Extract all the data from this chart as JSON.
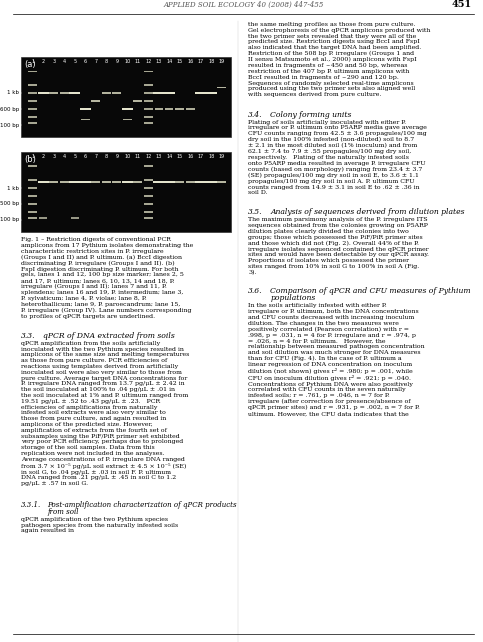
{
  "page_header": "APPLIED SOIL ECOLOGY 40 (2008) 447-455",
  "page_number": "451",
  "fig_label_a": "(a)",
  "fig_label_b": "(b)",
  "gel_a_lanes": "1  2  3  4  5  6  7  8  9  10  11  12  13  14  15  16  17  18  19",
  "gel_b_lanes": "1  2  3  4  5  6  7  8  9  10  11  12  13  14  15  16  17  18  19",
  "gel_a_markers": [
    "1 kb",
    "600 bp",
    "100 bp"
  ],
  "gel_b_markers": [
    "1 kb",
    "500 bp",
    "100 bp"
  ],
  "fig_caption": "Fig. 1 – Restriction digests of conventional PCR amplicons from 17 Pythium isolates demonstrating the characteristic restriction sites in P. irregulare (Groups I and II) and P. ultimum. (a) BccI digestion discriminating P. irregulare (Groups I and II). (b) FspI digestion discriminating P. ultimum. For both gels, lanes 1 and 12, 100 bp size marker; lanes 2, 5 and 17, P. ultimum; lanes 6, 10, 13, 14 and 18, P. irregulare (Groups I and II); lanes 7 and 11, P. splendens; lanes 16 and 19, P. intermedium; lane 3, P. sylvaticum; lane 4, P. violae; lane 8, P. heterothallicum; lane 9, P. paroecandrum; lane 15, P. irregulare (Group IV). Lane numbers corresponding to profiles of qPCR targets are underlined.",
  "section_33_title": "3.3.\tqPCR of DNA extracted from soils",
  "section_33_text": "qPCR amplification from the soils artificially inoculated with the two Pythium species resulted in amplicons of the same size and melting temperatures as those from pure culture. PCR efficiencies of reactions using templates derived from artificially inoculated soil were also very similar to those from pure culture. Average target DNA concentrations for P. irregulare DNA ranged from 13.7 pg/μL ± 2.42 in the soil inoculated at 100% to .04 pg/μL ± .01 in the soil inoculated at 1% and P. ultimum ranged from 19.51 pg/μL ± .52 to .43 pg/μL ± .23.\n\nPCR efficiencies of amplifications from naturally infested soil extracts were also very similar to those from pure culture, and again resulted in amplicons of the predicted size. However, amplification of extracts from the fourth set of subsamples using the PiF/PiR primer set exhibited very poor PCR efficiency, perhaps due to prolonged storage of the soil samples. Data from this replication were not included in the analyses.\n\nAverage concentrations of P. irregulare DNA ranged from 3.7 × 10⁻⁵ pg/μL soil extract ± 4.5 × 10⁻⁵ (SE) in soil G, to .04 pg/μL ± .03 in soil F. P. ultimum DNA ranged from .21 pg/μL ± .45 in soil C to 1.2 pg/μL ± .57 in soil G.",
  "section_331_title": "3.3.1.\tPost-amplification characterization of qPCR products from soil",
  "section_331_text": "qPCR amplification of the two Pythium species pathogen species from the naturally infested soils again resulted in",
  "right_col_text_1": "the same melting profiles as those from pure culture. Gel electrophoresis of the qPCR amplicons produced with the two primer sets revealed that they were all of the predicted size. Restriction digests using BccI and FspI also indicated that the target DNA had been amplified. Restriction of the 508 bp P. irregulare (Groups 1 and II sensu Matsumoto et al., 2000) amplicons with FspI resulted in fragments of ~450 and 50 bp, whereas restriction of the 407 bp P. ultimum amplicons with BccI resulted in fragments of ~290 and 120 bp. Sequences of randomly selected real-time amplicons produced using the two primer sets also aligned well with sequences derived from pure culture.",
  "section_34_title": "3.4.\tColony forming units",
  "section_34_text": "Plating of soils artificially inoculated with either P. irregulare or P. ultimum onto P5ARP media gave average CFU counts ranging from 42.5 ± 3.6 propagules/100 mg dry soil in the 100% infested (non-diluted) soil to 8.7 ± 2.1 in the most diluted soil (1% inoculum) and from 62.1 ± 7.4 to 7.9 ± .55 propagules/100 mg dry soil, respectively.\n\nPlating of the naturally infested soils onto P5ARP media resulted in average P. irregulare CFU counts (based on morphology) ranging from 23.4 ± 3.7 (SE) propagules/100 mg dry soil in soil E, to 3.6 ± 1.1 propagules/100 mg dry soil in soil A. P. ultimum CFU counts ranged from 14.9 ± 3.1 in soil E to .62 ± .36 in soil D.",
  "section_35_title": "3.5.\tAnalysis of sequences derived from dilution plates",
  "section_35_text": "The maximum parsimony analysis of the P. irregulare ITS sequences obtained from the colonies growing on P5ARP dilution plates clearly divided the colonies into two groups; those which possessed the PiF/PiR primer sites and those which did not (Fig. 2). Overall 44% of the P. irregulare isolates sequenced contained the qPCR primer sites and would have been detectable by our qPCR assay. Proportions of isolates which possessed the primer sites ranged from 10% in soil G to 100% in soil A (Fig. 3).",
  "section_36_title": "3.6.\tComparison of qPCR and CFU measures of Pythium populations",
  "section_36_text": "In the soils artificially infested with either P. irregulare or P. ultimum, both the DNA concentrations and CFU counts decreased with increasing inoculum dilution. The changes in the two measures were positively correlated (Pearson correlation) with r = .998, p = .031, n = 4 for P. irregulare and r = .974, p = .026, n = 4 for P. ultimum.\n\nHowever, the relationship between measured pathogen concentration and soil dilution was much stronger for DNA measures than for CFU (Fig. 4). In the case of P. ultimum a linear regression of DNA concentration on inoculum dilution (not shown) gives r² = .980; p = .001, while CFU on inoculum dilution gives r² = .921; p = .040.\n\nConcentrations of Pythium DNA were also positively correlated with CFU counts in the seven naturally infested soils; r = .761, p = .046, n = 7 for P. irregulare (after correction for presence/absence of qPCR primer sites) and r = .931, p = .002, n = 7 for P. ultimum. However, the CFU data indicates that the",
  "background_color": "#ffffff",
  "text_color": "#000000",
  "gel_bg_color": "#0a0a0a",
  "band_color": "#e8e8d0",
  "bright_band_color": "#f5f5e8"
}
